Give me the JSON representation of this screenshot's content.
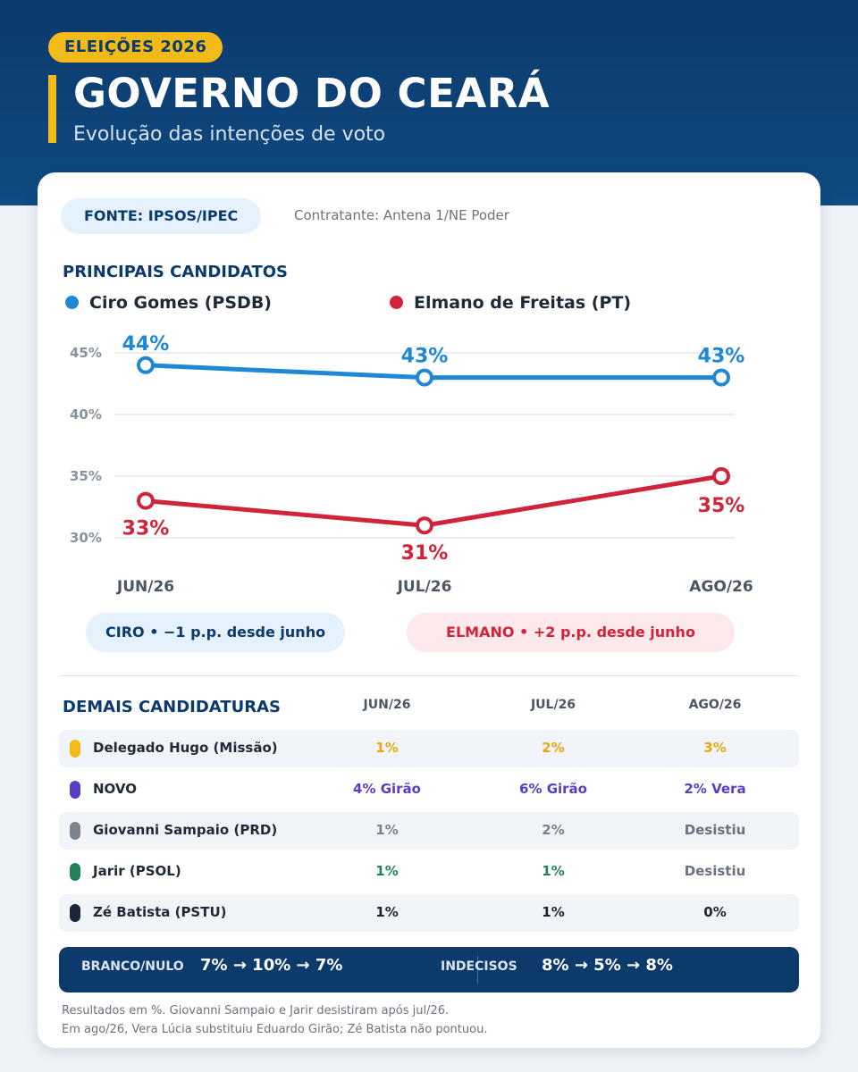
{
  "header": {
    "tag": "ELEIÇÕES 2026",
    "title": "GOVERNO DO CEARÁ",
    "subtitle": "Evolução das intenções de voto"
  },
  "source": {
    "label": "FONTE: IPSOS/IPEC",
    "contratante": "Contratante: Antena 1/NE Poder"
  },
  "main_section_title": "PRINCIPAIS CANDIDATOS",
  "colors": {
    "ciro": "#1f88d6",
    "elmano": "#d0243b",
    "navy": "#0c3a6b",
    "accent": "#f2bb1a"
  },
  "chart_data": {
    "type": "line",
    "categories": [
      "JUN/26",
      "JUL/26",
      "AGO/26"
    ],
    "series": [
      {
        "name": "Ciro Gomes (PSDB)",
        "values": [
          44,
          43,
          43
        ],
        "labels": [
          "44%",
          "43%",
          "43%"
        ]
      },
      {
        "name": "Elmano de Freitas (PT)",
        "values": [
          33,
          31,
          35
        ],
        "labels": [
          "33%",
          "31%",
          "35%"
        ]
      }
    ],
    "y_ticks": [
      45,
      40,
      35,
      30
    ],
    "y_tick_labels": [
      "45%",
      "40%",
      "35%",
      "30%"
    ],
    "ylim": [
      30,
      45
    ],
    "grid": true,
    "legend": "top-left"
  },
  "deltas": {
    "ciro": "CIRO  •  −1 p.p. desde junho",
    "elmano": "ELMANO  •  +2 p.p. desde junho"
  },
  "others": {
    "title": "DEMAIS CANDIDATURAS",
    "columns": [
      "JUN/26",
      "JUL/26",
      "AGO/26"
    ],
    "rows": [
      {
        "name": "Delegado Hugo (Missão)",
        "color": "#f2bb1a",
        "text_color": "#e8a910",
        "values": [
          "1%",
          "2%",
          "3%"
        ]
      },
      {
        "name": "NOVO",
        "color": "#5b3cc4",
        "text_color": "#5b3cc4",
        "values": [
          "4%  Girão",
          "6%  Girão",
          "2%  Vera"
        ]
      },
      {
        "name": "Giovanni Sampaio (PRD)",
        "color": "#7b8390",
        "text_color": "#7b8390",
        "values": [
          "1%",
          "2%",
          "Desistiu"
        ]
      },
      {
        "name": "Jarir (PSOL)",
        "color": "#23825a",
        "text_color": "#23825a",
        "values": [
          "1%",
          "1%",
          "Desistiu"
        ]
      },
      {
        "name": "Zé Batista (PSTU)",
        "color": "#1c2536",
        "text_color": "#1c2536",
        "values": [
          "1%",
          "1%",
          "0%"
        ]
      }
    ]
  },
  "summary": {
    "branco_label": "BRANCO/NULO",
    "branco_values": "7%  →  10%  →  7%",
    "indecisos_label": "INDECISOS",
    "indecisos_values": "8%  →  5%  →  8%"
  },
  "footnotes": [
    "Resultados em %. Giovanni Sampaio e Jarir desistiram após jul/26.",
    "Em ago/26, Vera Lúcia substituiu Eduardo Girão; Zé Batista não pontuou."
  ]
}
